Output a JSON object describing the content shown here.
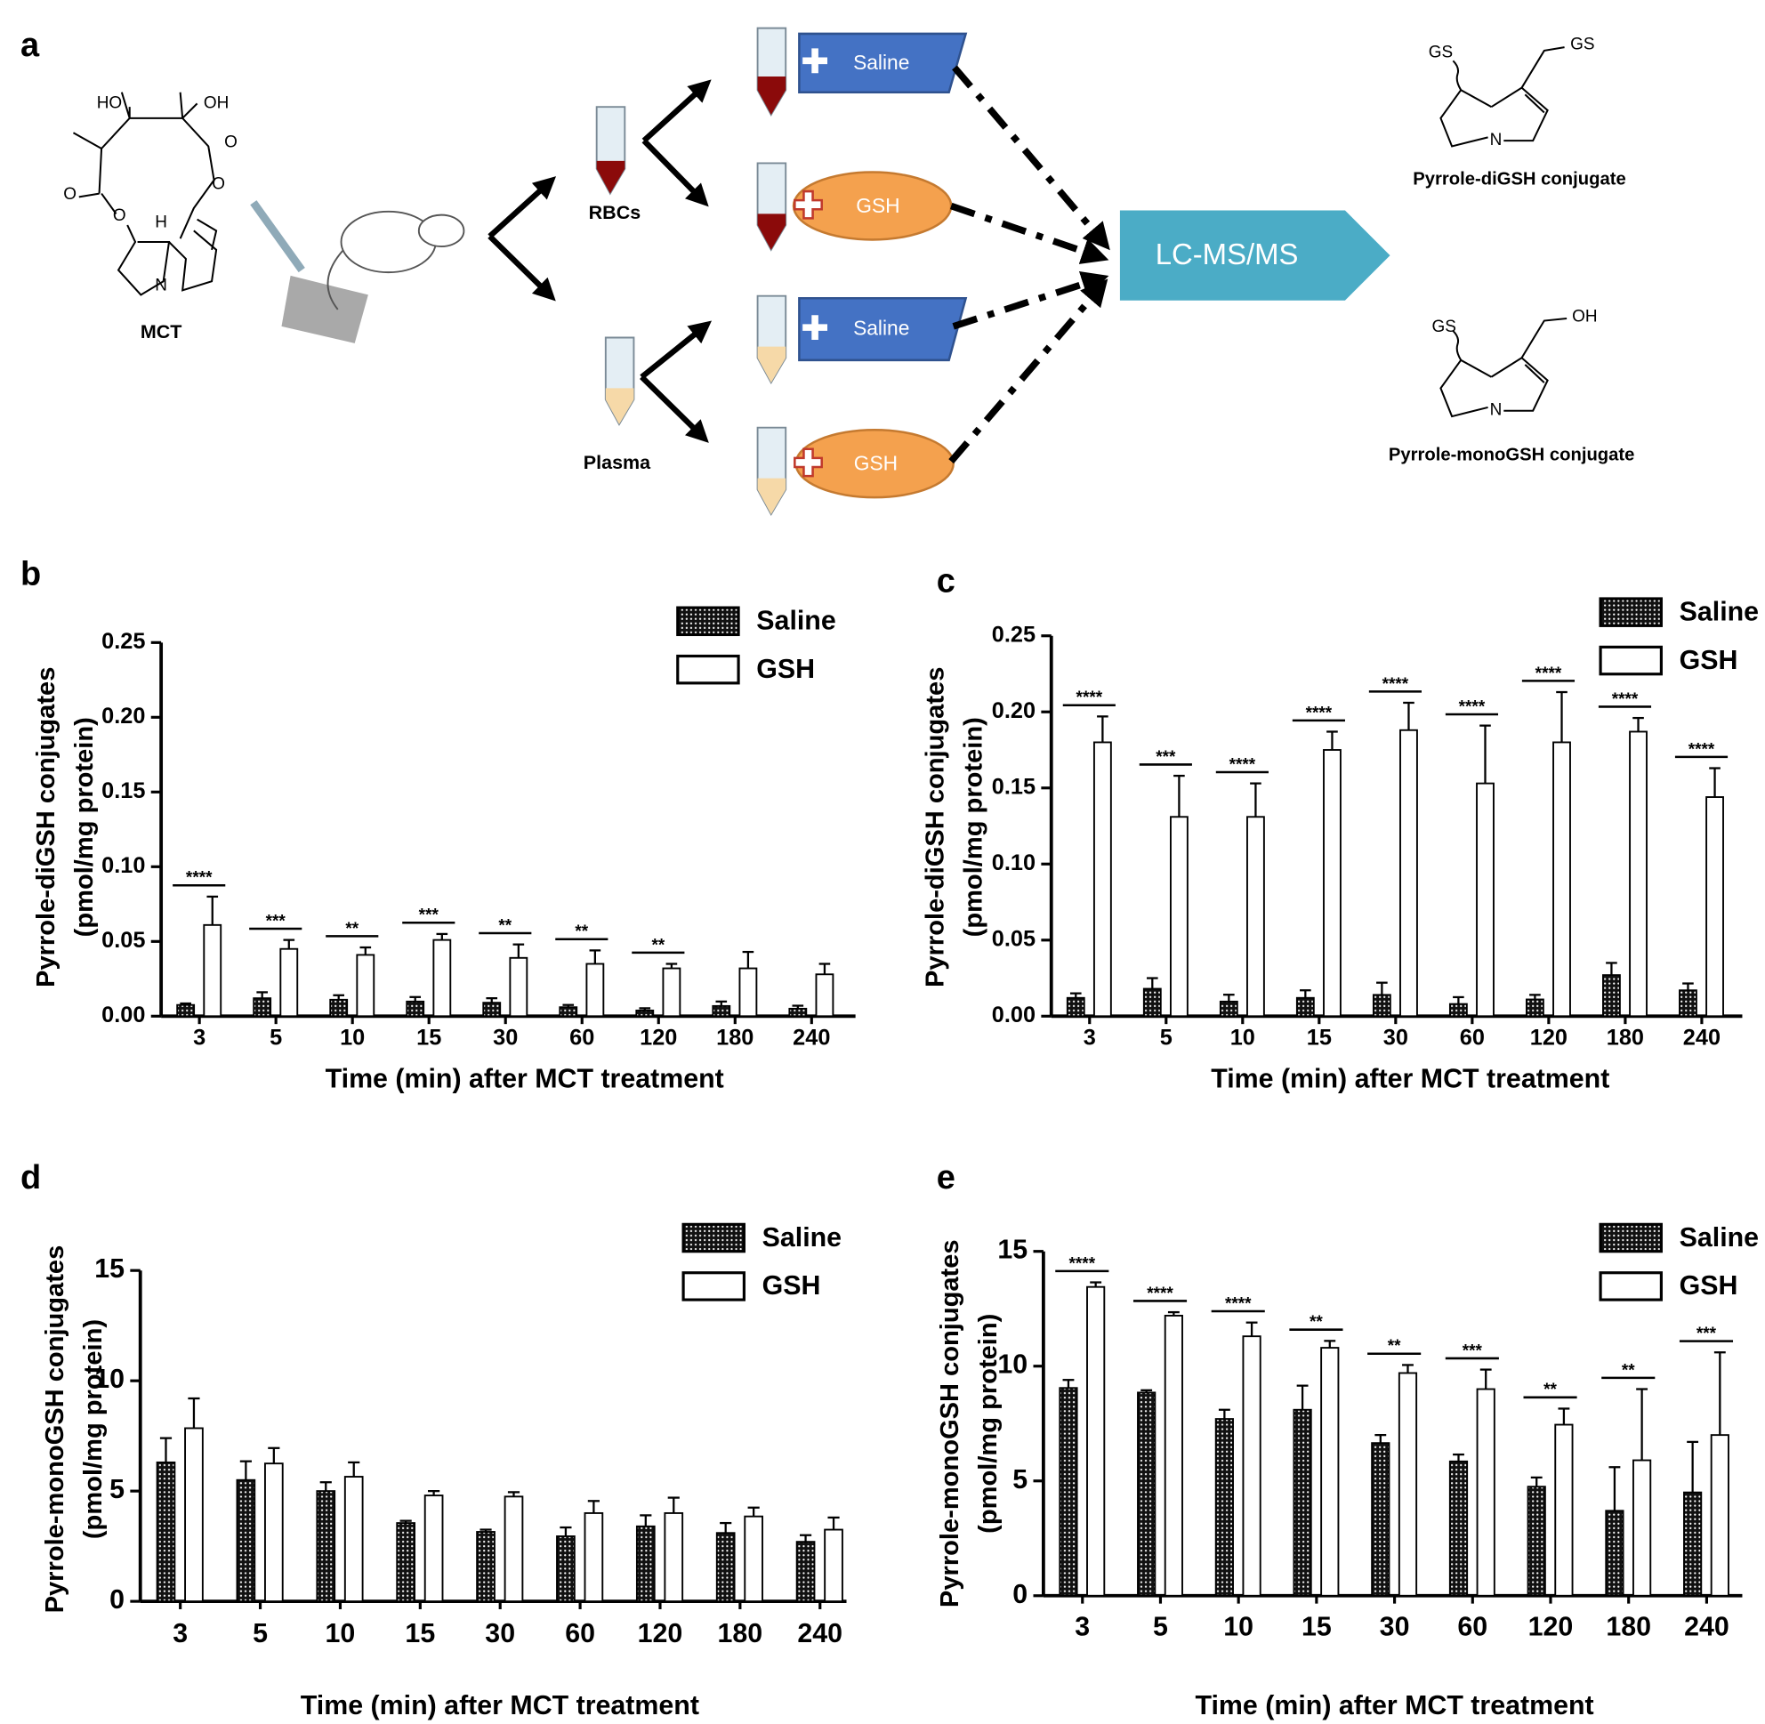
{
  "diagram": {
    "panel": "a",
    "compound": "MCT",
    "mct_atoms": [
      "HO",
      "OH",
      "O",
      "O",
      "O",
      "O",
      "H",
      "N"
    ],
    "fractions": [
      "RBCs",
      "Plasma"
    ],
    "treatments": [
      "Saline",
      "GSH",
      "Saline",
      "GSH"
    ],
    "analysis": "LC-MS/MS",
    "products": [
      {
        "name": "Pyrrole-diGSH conjugate",
        "atoms": [
          "GS",
          "GS",
          "N"
        ]
      },
      {
        "name": "Pyrrole-monoGSH conjugate",
        "atoms": [
          "GS",
          "OH",
          "N"
        ]
      }
    ]
  },
  "chart_data": [
    {
      "type": "bar",
      "panel": "b",
      "ylabel": "Pyrrole-diGSH conjugates",
      "ylabel_sub": "(pmol/mg protein)",
      "xlabel": "Time (min) after MCT treatment",
      "categories": [
        "3",
        "5",
        "10",
        "15",
        "30",
        "60",
        "120",
        "180",
        "240"
      ],
      "series": [
        {
          "name": "Saline",
          "color": "#111111",
          "pattern": "dots",
          "values": [
            0.0075,
            0.012,
            0.011,
            0.0098,
            0.009,
            0.006,
            0.0038,
            0.0068,
            0.005
          ],
          "errors": [
            0.001,
            0.004,
            0.003,
            0.003,
            0.003,
            0.0015,
            0.0015,
            0.003,
            0.002
          ]
        },
        {
          "name": "GSH",
          "color": "#ffffff",
          "values": [
            0.061,
            0.045,
            0.041,
            0.051,
            0.039,
            0.035,
            0.032,
            0.032,
            0.028
          ],
          "errors": [
            0.019,
            0.006,
            0.005,
            0.004,
            0.009,
            0.009,
            0.003,
            0.011,
            0.007
          ]
        }
      ],
      "significance": [
        "****",
        "***",
        "**",
        "***",
        "**",
        "**",
        "**",
        null,
        null
      ],
      "ylim": [
        0,
        0.25
      ],
      "yticks": [
        {
          "value": 0,
          "label": "0.00"
        },
        {
          "value": 0.05,
          "label": "0.05"
        },
        {
          "value": 0.1,
          "label": "0.10"
        },
        {
          "value": 0.15,
          "label": "0.15"
        },
        {
          "value": 0.2,
          "label": "0.20"
        },
        {
          "value": 0.25,
          "label": "0.25"
        }
      ],
      "legend": "top-right"
    },
    {
      "type": "bar",
      "panel": "c",
      "ylabel": "Pyrrole-diGSH conjugates",
      "ylabel_sub": "(pmol/mg protein)",
      "xlabel": "Time (min) after MCT treatment",
      "categories": [
        "3",
        "5",
        "10",
        "15",
        "30",
        "60",
        "120",
        "180",
        "240"
      ],
      "series": [
        {
          "name": "Saline",
          "color": "#111111",
          "pattern": "dots",
          "values": [
            0.012,
            0.018,
            0.0096,
            0.012,
            0.014,
            0.008,
            0.011,
            0.027,
            0.017
          ],
          "errors": [
            0.003,
            0.007,
            0.0045,
            0.005,
            0.008,
            0.0045,
            0.003,
            0.008,
            0.0045
          ]
        },
        {
          "name": "GSH",
          "color": "#ffffff",
          "values": [
            0.18,
            0.131,
            0.131,
            0.175,
            0.188,
            0.153,
            0.18,
            0.187,
            0.144
          ],
          "errors": [
            0.017,
            0.027,
            0.022,
            0.012,
            0.018,
            0.038,
            0.033,
            0.009,
            0.019
          ]
        }
      ],
      "significance": [
        "****",
        "***",
        "****",
        "****",
        "****",
        "****",
        "****",
        "****",
        "****"
      ],
      "ylim": [
        0,
        0.25
      ],
      "yticks": [
        {
          "value": 0,
          "label": "0.00"
        },
        {
          "value": 0.05,
          "label": "0.05"
        },
        {
          "value": 0.1,
          "label": "0.10"
        },
        {
          "value": 0.15,
          "label": "0.15"
        },
        {
          "value": 0.2,
          "label": "0.20"
        },
        {
          "value": 0.25,
          "label": "0.25"
        }
      ],
      "legend": "top-right"
    },
    {
      "type": "bar",
      "panel": "d",
      "ylabel": "Pyrrole-monoGSH conjugates",
      "ylabel_sub": "(pmol/mg protein)",
      "xlabel": "Time (min) after MCT treatment",
      "categories": [
        "3",
        "5",
        "10",
        "15",
        "30",
        "60",
        "120",
        "180",
        "240"
      ],
      "series": [
        {
          "name": "Saline",
          "color": "#111111",
          "pattern": "dots",
          "values": [
            6.3,
            5.5,
            5.0,
            3.55,
            3.15,
            2.95,
            3.4,
            3.1,
            2.7
          ],
          "errors": [
            1.1,
            0.85,
            0.4,
            0.1,
            0.1,
            0.4,
            0.5,
            0.45,
            0.3
          ]
        },
        {
          "name": "GSH",
          "color": "#ffffff",
          "values": [
            7.85,
            6.25,
            5.65,
            4.8,
            4.75,
            4.0,
            4.0,
            3.85,
            3.25
          ],
          "errors": [
            1.35,
            0.7,
            0.65,
            0.2,
            0.2,
            0.55,
            0.7,
            0.4,
            0.55
          ]
        }
      ],
      "significance": [
        null,
        null,
        null,
        null,
        null,
        null,
        null,
        null,
        null
      ],
      "ylim": [
        0,
        15
      ],
      "yticks": [
        0,
        5,
        10,
        15
      ],
      "legend": "top-right"
    },
    {
      "type": "bar",
      "panel": "e",
      "ylabel": "Pyrrole-monoGSH conjugates",
      "ylabel_sub": "(pmol/mg protein)",
      "xlabel": "Time (min) after MCT treatment",
      "categories": [
        "3",
        "5",
        "10",
        "15",
        "30",
        "60",
        "120",
        "180",
        "240"
      ],
      "series": [
        {
          "name": "Saline",
          "color": "#111111",
          "pattern": "dots",
          "values": [
            9.05,
            8.85,
            7.7,
            8.1,
            6.65,
            5.85,
            4.75,
            3.7,
            4.5
          ],
          "errors": [
            0.35,
            0.1,
            0.4,
            1.05,
            0.35,
            0.3,
            0.4,
            1.9,
            2.2
          ]
        },
        {
          "name": "GSH",
          "color": "#ffffff",
          "values": [
            13.45,
            12.2,
            11.3,
            10.8,
            9.7,
            9.0,
            7.45,
            5.9,
            7.0
          ],
          "errors": [
            0.2,
            0.15,
            0.6,
            0.3,
            0.35,
            0.85,
            0.7,
            3.1,
            3.6
          ]
        }
      ],
      "significance": [
        "****",
        "****",
        "****",
        "**",
        "**",
        "***",
        "**",
        "**",
        "***"
      ],
      "ylim": [
        0,
        15
      ],
      "yticks": [
        0,
        5,
        10,
        15
      ],
      "legend": "top-right"
    }
  ]
}
